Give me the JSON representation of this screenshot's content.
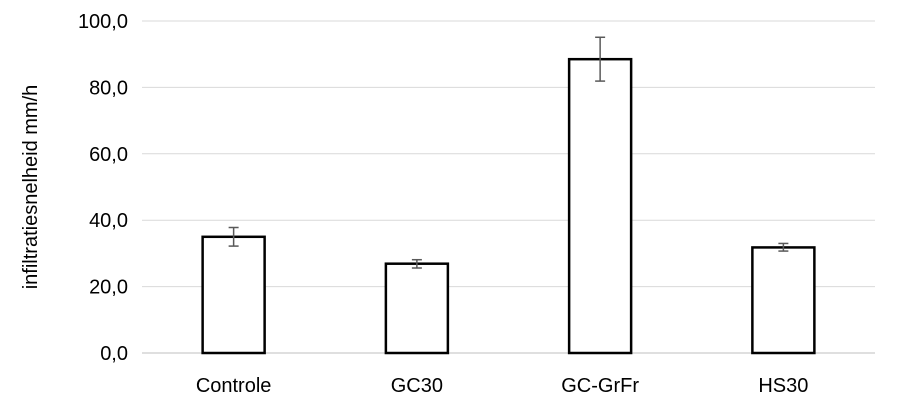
{
  "chart_data": {
    "type": "bar",
    "title": "",
    "xlabel": "",
    "ylabel": "infiltratiesnelheid mm/h",
    "categories": [
      "Controle",
      "GC30",
      "GC-GrFr",
      "HS30"
    ],
    "values": [
      35.0,
      26.9,
      88.5,
      31.8
    ],
    "error_bars": [
      {
        "low": 32.2,
        "high": 37.8
      },
      {
        "low": 25.6,
        "high": 28.1
      },
      {
        "low": 81.9,
        "high": 95.1
      },
      {
        "low": 30.7,
        "high": 33.0
      }
    ],
    "ylim": [
      0,
      100
    ],
    "yticks": [
      0,
      20,
      40,
      60,
      80,
      100
    ],
    "ytick_labels": [
      "0,0",
      "20,0",
      "40,0",
      "60,0",
      "80,0",
      "100,0"
    ],
    "grid": true,
    "legend": "none",
    "colors": {
      "bar_fill": "#ffffff",
      "bar_stroke": "#000000",
      "gridline": "#d9d9d9",
      "axis": "#bfbfbf",
      "error_bar": "#595959"
    }
  }
}
